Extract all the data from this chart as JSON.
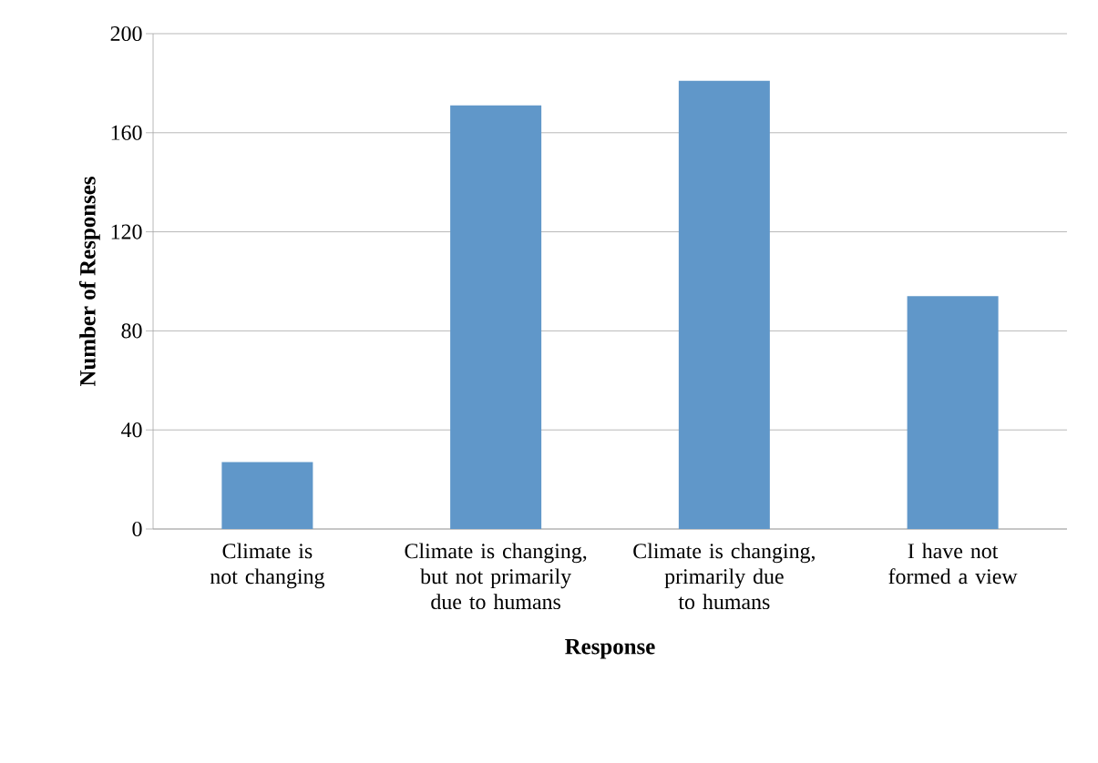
{
  "chart_data": {
    "type": "bar",
    "xlabel": "Response",
    "ylabel": "Number of Responses",
    "categories": [
      "Climate is not changing",
      "Climate is changing, but not primarily due to humans",
      "Climate is changing, primarily due to humans",
      "I have not formed a view"
    ],
    "values": [
      27,
      171,
      181,
      94
    ],
    "color": "#6097c9",
    "ylim": [
      0,
      200
    ],
    "yticks": [
      0,
      40,
      80,
      120,
      160,
      200
    ],
    "grid": "y"
  }
}
